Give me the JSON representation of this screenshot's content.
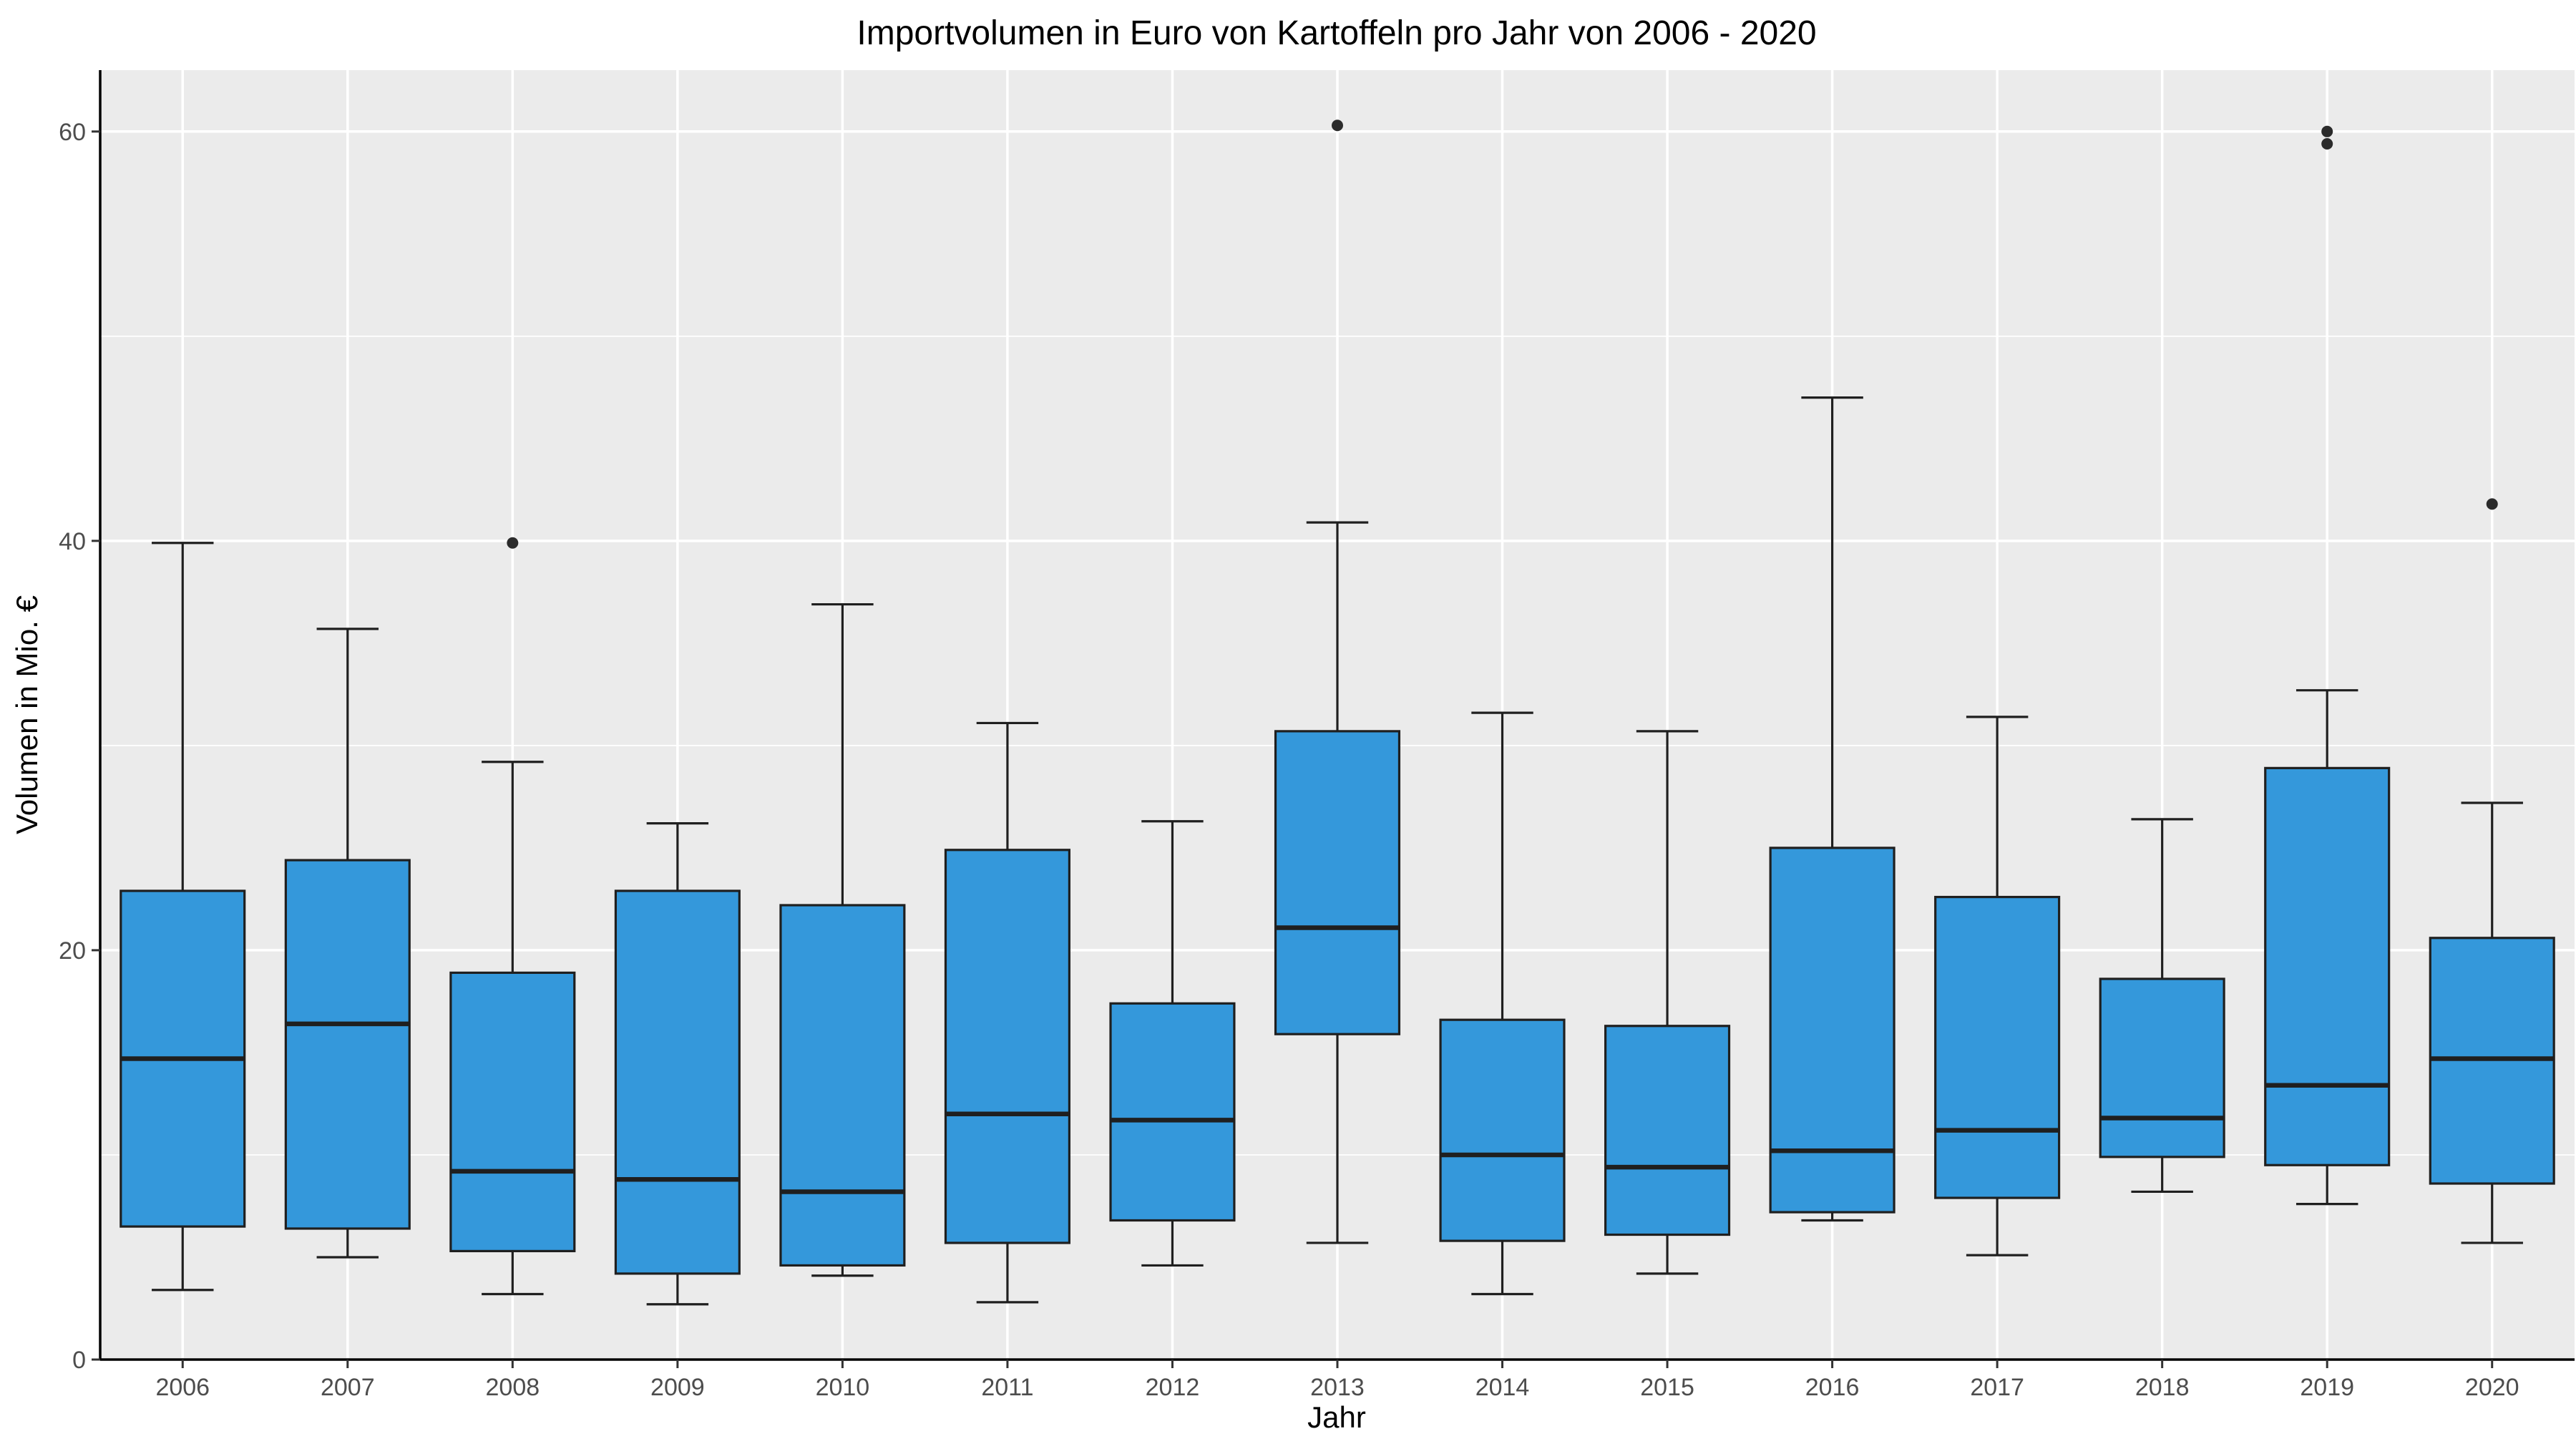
{
  "chart_data": {
    "type": "box",
    "title": "Importvolumen in Euro von Kartoffeln pro Jahr von 2006 - 2020",
    "xlabel": "Jahr",
    "ylabel": "Volumen in Mio. €",
    "ylim": [
      0,
      63
    ],
    "yticks": [
      0,
      20,
      40,
      60
    ],
    "grid": true,
    "box_color": "#3498db",
    "panel_color": "#ebebeb",
    "categories": [
      "2006",
      "2007",
      "2008",
      "2009",
      "2010",
      "2011",
      "2012",
      "2013",
      "2014",
      "2015",
      "2016",
      "2017",
      "2018",
      "2019",
      "2020"
    ],
    "boxes": [
      {
        "label": "2006",
        "whisker_low": 3.4,
        "q1": 6.5,
        "median": 14.7,
        "q3": 22.9,
        "whisker_high": 39.9,
        "outliers": []
      },
      {
        "label": "2007",
        "whisker_low": 5.0,
        "q1": 6.4,
        "median": 16.4,
        "q3": 24.4,
        "whisker_high": 35.7,
        "outliers": []
      },
      {
        "label": "2008",
        "whisker_low": 3.2,
        "q1": 5.3,
        "median": 9.2,
        "q3": 18.9,
        "whisker_high": 29.2,
        "outliers": [
          39.9
        ]
      },
      {
        "label": "2009",
        "whisker_low": 2.7,
        "q1": 4.2,
        "median": 8.8,
        "q3": 22.9,
        "whisker_high": 26.2,
        "outliers": []
      },
      {
        "label": "2010",
        "whisker_low": 4.1,
        "q1": 4.6,
        "median": 8.2,
        "q3": 22.2,
        "whisker_high": 36.9,
        "outliers": []
      },
      {
        "label": "2011",
        "whisker_low": 2.8,
        "q1": 5.7,
        "median": 12.0,
        "q3": 24.9,
        "whisker_high": 31.1,
        "outliers": []
      },
      {
        "label": "2012",
        "whisker_low": 4.6,
        "q1": 6.8,
        "median": 11.7,
        "q3": 17.4,
        "whisker_high": 26.3,
        "outliers": []
      },
      {
        "label": "2013",
        "whisker_low": 5.7,
        "q1": 15.9,
        "median": 21.1,
        "q3": 30.7,
        "whisker_high": 40.9,
        "outliers": [
          60.3
        ]
      },
      {
        "label": "2014",
        "whisker_low": 3.2,
        "q1": 5.8,
        "median": 10.0,
        "q3": 16.6,
        "whisker_high": 31.6,
        "outliers": []
      },
      {
        "label": "2015",
        "whisker_low": 4.2,
        "q1": 6.1,
        "median": 9.4,
        "q3": 16.3,
        "whisker_high": 30.7,
        "outliers": []
      },
      {
        "label": "2016",
        "whisker_low": 6.8,
        "q1": 7.2,
        "median": 10.2,
        "q3": 25.0,
        "whisker_high": 47.0,
        "outliers": []
      },
      {
        "label": "2017",
        "whisker_low": 5.1,
        "q1": 7.9,
        "median": 11.2,
        "q3": 22.6,
        "whisker_high": 31.4,
        "outliers": []
      },
      {
        "label": "2018",
        "whisker_low": 8.2,
        "q1": 9.9,
        "median": 11.8,
        "q3": 18.6,
        "whisker_high": 26.4,
        "outliers": []
      },
      {
        "label": "2019",
        "whisker_low": 7.6,
        "q1": 9.5,
        "median": 13.4,
        "q3": 28.9,
        "whisker_high": 32.7,
        "outliers": [
          59.4,
          60.0
        ]
      },
      {
        "label": "2020",
        "whisker_low": 5.7,
        "q1": 8.6,
        "median": 14.7,
        "q3": 20.6,
        "whisker_high": 27.2,
        "outliers": [
          41.8
        ]
      }
    ]
  }
}
